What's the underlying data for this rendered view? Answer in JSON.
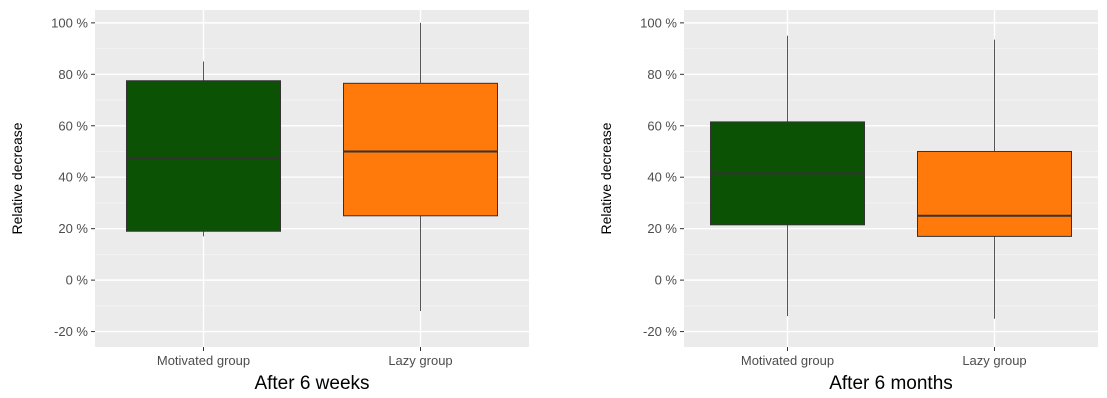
{
  "colors": {
    "panel_bg": "#ebebeb",
    "grid_major": "#ffffff",
    "grid_minor": "#f5f5f5",
    "motivated_fill": "#0b5204",
    "lazy_fill": "#ff7a0b",
    "box_stroke": "#333333",
    "whisker": "#555555",
    "tick_text": "#4d4d4d",
    "title_text": "#000000"
  },
  "chart_data": [
    {
      "type": "box",
      "title": "After 6 weeks",
      "ylabel": "Relative decrease",
      "ylim": [
        -26,
        105
      ],
      "yticks": [
        -20,
        0,
        20,
        40,
        60,
        80,
        100
      ],
      "ytick_labels": [
        "-20 %",
        "0 %",
        "20 %",
        "40 %",
        "60 %",
        "80 %",
        "100 %"
      ],
      "grid": true,
      "categories": [
        "Motivated group",
        "Lazy group"
      ],
      "boxes": [
        {
          "category": "Motivated group",
          "whisker_low": 17,
          "q1": 19,
          "median": 47.5,
          "q3": 77.5,
          "whisker_high": 85,
          "color": "#0b5204"
        },
        {
          "category": "Lazy group",
          "whisker_low": -12,
          "q1": 25,
          "median": 50,
          "q3": 76.5,
          "whisker_high": 100,
          "color": "#ff7a0b"
        }
      ]
    },
    {
      "type": "box",
      "title": "After 6 months",
      "ylabel": "Relative decrease",
      "ylim": [
        -26,
        105
      ],
      "yticks": [
        -20,
        0,
        20,
        40,
        60,
        80,
        100
      ],
      "ytick_labels": [
        "-20 %",
        "0 %",
        "20 %",
        "40 %",
        "60 %",
        "80 %",
        "100 %"
      ],
      "grid": true,
      "categories": [
        "Motivated group",
        "Lazy group"
      ],
      "boxes": [
        {
          "category": "Motivated group",
          "whisker_low": -14,
          "q1": 21.5,
          "median": 41.5,
          "q3": 61.5,
          "whisker_high": 95,
          "color": "#0b5204"
        },
        {
          "category": "Lazy group",
          "whisker_low": -15,
          "q1": 17,
          "median": 25,
          "q3": 50,
          "whisker_high": 93.5,
          "color": "#ff7a0b"
        }
      ]
    }
  ]
}
